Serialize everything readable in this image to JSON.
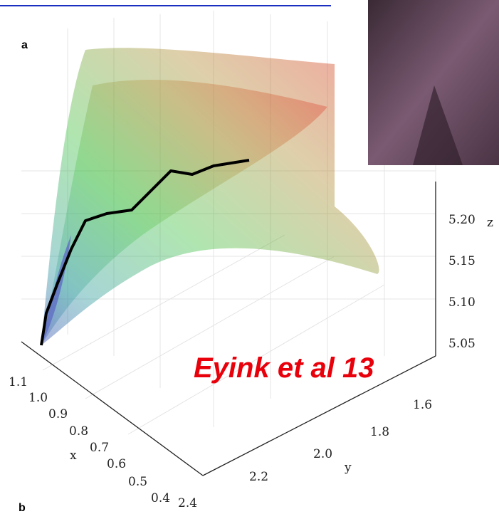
{
  "panel_a": "a",
  "panel_b": "b",
  "annotation": "Eyink et al 13",
  "axes": {
    "x": {
      "label": "x",
      "ticks": [
        "1.1",
        "1.0",
        "0.9",
        "0.8",
        "0.7",
        "0.6",
        "0.5",
        "0.4"
      ]
    },
    "y": {
      "label": "y",
      "ticks": [
        "2.4",
        "2.2",
        "2.0",
        "1.8",
        "1.6"
      ]
    },
    "z": {
      "label": "z",
      "ticks": [
        "5.20",
        "5.15",
        "5.10",
        "5.05"
      ]
    }
  }
}
